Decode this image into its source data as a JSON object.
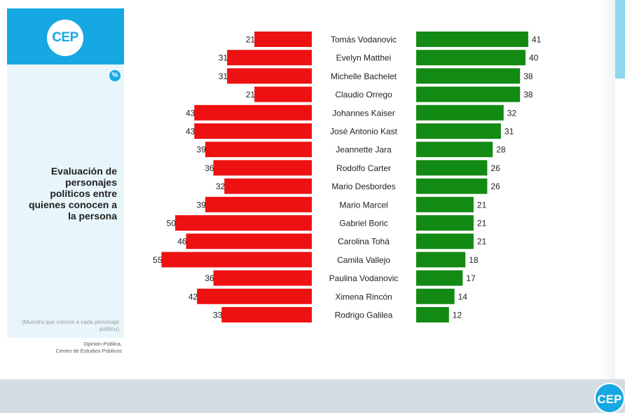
{
  "brand": {
    "logo_text": "CEP",
    "corner_logo_text": "CEP",
    "percent_icon": "%"
  },
  "sidebar": {
    "title": "Evaluación de personajes políticos entre quienes conocen a la persona",
    "note": "(Muestra que conoce a cada personaje político)",
    "source_line1": "Opinión Pública,",
    "source_line2": "Centro de Estudios Públicos"
  },
  "colors": {
    "negative": "#ee1111",
    "positive": "#138a13",
    "brand": "#16a8e2"
  },
  "chart_data": {
    "type": "bar",
    "orientation": "horizontal-diverging",
    "categories": [
      "Tomás Vodanovic",
      "Evelyn Matthei",
      "Michelle Bachelet",
      "Claudio Orrego",
      "Johannes Kaiser",
      "José Antonio Kast",
      "Jeannette Jara",
      "Rodolfo Carter",
      "Mario Desbordes",
      "Mario Marcel",
      "Gabriel Boric",
      "Carolina Tohá",
      "Camila Vallejo",
      "Paulina Vodanovic",
      "Ximena Rincón",
      "Rodrigo Galilea"
    ],
    "series": [
      {
        "values": [
          21,
          31,
          31,
          21,
          43,
          43,
          39,
          36,
          32,
          39,
          50,
          46,
          55,
          36,
          42,
          33
        ],
        "color": "#ee1111",
        "side": "left"
      },
      {
        "values": [
          41,
          40,
          38,
          38,
          32,
          31,
          28,
          26,
          26,
          21,
          21,
          21,
          18,
          17,
          14,
          12
        ],
        "color": "#138a13",
        "side": "right"
      }
    ],
    "title": "",
    "xlabel": "",
    "ylabel": "",
    "legend": "none",
    "grid": false
  }
}
